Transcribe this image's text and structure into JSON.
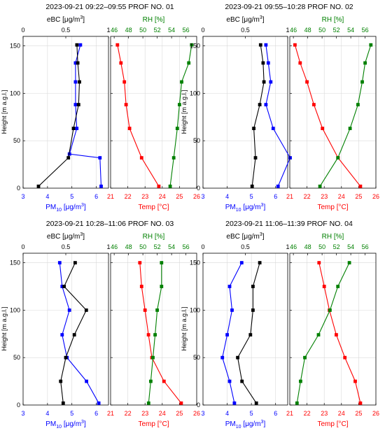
{
  "shared": {
    "ylabel": "Height [m a.g.l.]",
    "y_ticks": [
      0,
      50,
      100,
      150
    ],
    "ylim": [
      0,
      160
    ],
    "bottom_left_label_main": "PM",
    "bottom_left_label_sub": "10",
    "bottom_left_label_unit": " [μg/m",
    "bottom_left_label_sup": "3",
    "bottom_left_label_end": "]",
    "bottom_right_label": "Temp [°C]",
    "top_left_label_main": "eBC [μg/m",
    "top_left_label_sup": "3",
    "top_left_label_end": "]",
    "top_right_label": "RH [%]",
    "pm_ticks": [
      "3",
      "4",
      "5",
      "6"
    ],
    "ebc_ticks": [
      "0",
      "0.5",
      "1"
    ],
    "temp_ticks": [
      "21",
      "22",
      "23",
      "24",
      "25",
      "26"
    ],
    "rh_ticks": [
      "46",
      "48",
      "50",
      "52",
      "54",
      "56"
    ],
    "colors": {
      "pm10": "#0000ff",
      "ebc": "#000000",
      "temp": "#ff0000",
      "rh": "#008000"
    }
  },
  "chart_data": [
    {
      "type": "line",
      "title": "2023-09-21 09:22–09:55 PROF NO. 01",
      "left_panel": {
        "bottom_axis": {
          "label": "PM10 [μg/m3]",
          "range": [
            3,
            6.5
          ],
          "ticks": [
            3,
            4,
            5,
            6
          ]
        },
        "top_axis": {
          "label": "eBC [μg/m3]",
          "range": [
            0,
            1
          ],
          "ticks": [
            0,
            0.5,
            1
          ]
        },
        "series": [
          {
            "name": "PM10",
            "axis": "bottom",
            "heights": [
              2,
              32,
              36,
              63,
              88,
              112,
              132,
              151
            ],
            "values": [
              6.2,
              6.15,
              4.9,
              5.2,
              5.15,
              5.15,
              5.15,
              5.35
            ]
          },
          {
            "name": "eBC",
            "axis": "top",
            "heights": [
              2,
              32,
              63,
              88,
              112,
              132,
              151
            ],
            "values": [
              0.18,
              0.53,
              0.59,
              0.65,
              0.66,
              0.64,
              0.63
            ]
          }
        ]
      },
      "right_panel": {
        "bottom_axis": {
          "label": "Temp [°C]",
          "range": [
            21,
            26
          ],
          "ticks": [
            21,
            22,
            23,
            24,
            25,
            26
          ]
        },
        "top_axis": {
          "label": "RH [%]",
          "range": [
            45.5,
            57.5
          ],
          "ticks": [
            46,
            48,
            50,
            52,
            54,
            56
          ]
        },
        "series": [
          {
            "name": "Temp",
            "axis": "bottom",
            "heights": [
              2,
              32,
              63,
              88,
              112,
              132,
              151
            ],
            "values": [
              23.8,
              22.8,
              22.1,
              21.9,
              21.8,
              21.6,
              21.4
            ]
          },
          {
            "name": "RH",
            "axis": "top",
            "heights": [
              2,
              32,
              63,
              88,
              112,
              132,
              151
            ],
            "values": [
              53.8,
              54.3,
              54.8,
              55.1,
              55.4,
              56.4,
              56.8
            ]
          }
        ]
      }
    },
    {
      "type": "line",
      "title": "2023-09-21 09:55–10:28 PROF NO. 02",
      "left_panel": {
        "bottom_axis": {
          "label": "PM10 [μg/m3]",
          "range": [
            3,
            6.5
          ],
          "ticks": [
            3,
            4,
            5,
            6
          ]
        },
        "top_axis": {
          "label": "eBC [μg/m3]",
          "range": [
            0,
            1
          ],
          "ticks": [
            0,
            0.5,
            1
          ]
        },
        "series": [
          {
            "name": "PM10",
            "axis": "bottom",
            "heights": [
              2,
              32,
              63,
              88,
              112,
              132,
              151
            ],
            "values": [
              6.1,
              6.6,
              5.9,
              5.6,
              5.8,
              5.7,
              5.6
            ]
          },
          {
            "name": "eBC",
            "axis": "top",
            "heights": [
              2,
              32,
              63,
              88,
              112,
              132,
              151
            ],
            "values": [
              0.58,
              0.62,
              0.6,
              0.67,
              0.72,
              0.71,
              0.68
            ]
          }
        ]
      },
      "right_panel": {
        "bottom_axis": {
          "label": "Temp [°C]",
          "range": [
            21,
            26
          ],
          "ticks": [
            21,
            22,
            23,
            24,
            25,
            26
          ]
        },
        "top_axis": {
          "label": "RH [%]",
          "range": [
            45.5,
            57.5
          ],
          "ticks": [
            46,
            48,
            50,
            52,
            54,
            56
          ]
        },
        "series": [
          {
            "name": "Temp",
            "axis": "bottom",
            "heights": [
              2,
              32,
              63,
              88,
              112,
              132,
              151
            ],
            "values": [
              25.1,
              23.8,
              22.9,
              22.4,
              22.0,
              21.6,
              21.3
            ]
          },
          {
            "name": "RH",
            "axis": "top",
            "heights": [
              2,
              32,
              63,
              88,
              112,
              132,
              151
            ],
            "values": [
              49.7,
              52.2,
              53.9,
              55.0,
              55.6,
              56.0,
              56.8
            ]
          }
        ]
      }
    },
    {
      "type": "line",
      "title": "2023-09-21 10:28–11:06 PROF NO. 03",
      "left_panel": {
        "bottom_axis": {
          "label": "PM10 [μg/m3]",
          "range": [
            3,
            6.5
          ],
          "ticks": [
            3,
            4,
            5,
            6
          ]
        },
        "top_axis": {
          "label": "eBC [μg/m3]",
          "range": [
            0,
            1
          ],
          "ticks": [
            0,
            0.5,
            1
          ]
        },
        "series": [
          {
            "name": "PM10",
            "axis": "bottom",
            "heights": [
              2,
              25,
              50,
              74,
              100,
              125,
              150
            ],
            "values": [
              6.1,
              5.6,
              4.8,
              4.6,
              4.9,
              4.6,
              4.5
            ]
          },
          {
            "name": "eBC",
            "axis": "top",
            "heights": [
              2,
              25,
              50,
              74,
              100,
              125,
              150
            ],
            "values": [
              0.47,
              0.44,
              0.5,
              0.6,
              0.74,
              0.48,
              0.61
            ]
          }
        ]
      },
      "right_panel": {
        "bottom_axis": {
          "label": "Temp [°C]",
          "range": [
            21,
            26
          ],
          "ticks": [
            21,
            22,
            23,
            24,
            25,
            26
          ]
        },
        "top_axis": {
          "label": "RH [%]",
          "range": [
            45.5,
            57.5
          ],
          "ticks": [
            46,
            48,
            50,
            52,
            54,
            56
          ]
        },
        "series": [
          {
            "name": "Temp",
            "axis": "bottom",
            "heights": [
              2,
              25,
              50,
              74,
              100,
              125,
              150
            ],
            "values": [
              25.1,
              24.1,
              23.4,
              23.2,
              23.0,
              22.8,
              22.7
            ]
          },
          {
            "name": "RH",
            "axis": "top",
            "heights": [
              2,
              25,
              50,
              74,
              100,
              125,
              150
            ],
            "values": [
              50.8,
              51.1,
              51.4,
              51.7,
              52.0,
              52.6,
              52.6
            ]
          }
        ]
      }
    },
    {
      "type": "line",
      "title": "2023-09-21 11:06–11:39 PROF NO. 04",
      "left_panel": {
        "bottom_axis": {
          "label": "PM10 [μg/m3]",
          "range": [
            3,
            6.5
          ],
          "ticks": [
            3,
            4,
            5,
            6
          ]
        },
        "top_axis": {
          "label": "eBC [μg/m3]",
          "range": [
            0,
            1
          ],
          "ticks": [
            0,
            0.5,
            1
          ]
        },
        "series": [
          {
            "name": "PM10",
            "axis": "bottom",
            "heights": [
              2,
              25,
              50,
              74,
              100,
              125,
              150
            ],
            "values": [
              4.3,
              4.1,
              3.8,
              4.0,
              4.2,
              4.1,
              4.6
            ]
          },
          {
            "name": "eBC",
            "axis": "top",
            "heights": [
              2,
              25,
              50,
              74,
              100,
              125,
              150
            ],
            "values": [
              0.63,
              0.46,
              0.41,
              0.56,
              0.59,
              0.59,
              0.67
            ]
          }
        ]
      },
      "right_panel": {
        "bottom_axis": {
          "label": "Temp [°C]",
          "range": [
            21,
            26
          ],
          "ticks": [
            21,
            22,
            23,
            24,
            25,
            26
          ]
        },
        "top_axis": {
          "label": "RH [%]",
          "range": [
            45.5,
            57.5
          ],
          "ticks": [
            46,
            48,
            50,
            52,
            54,
            56
          ]
        },
        "series": [
          {
            "name": "Temp",
            "axis": "bottom",
            "heights": [
              2,
              25,
              50,
              74,
              100,
              125,
              150
            ],
            "values": [
              25.1,
              24.8,
              24.2,
              23.7,
              23.3,
              23.0,
              22.7
            ]
          },
          {
            "name": "RH",
            "axis": "top",
            "heights": [
              2,
              25,
              50,
              74,
              100,
              125,
              150
            ],
            "values": [
              46.5,
              47.0,
              47.6,
              49.5,
              51.1,
              52.2,
              53.8
            ]
          }
        ]
      }
    }
  ]
}
